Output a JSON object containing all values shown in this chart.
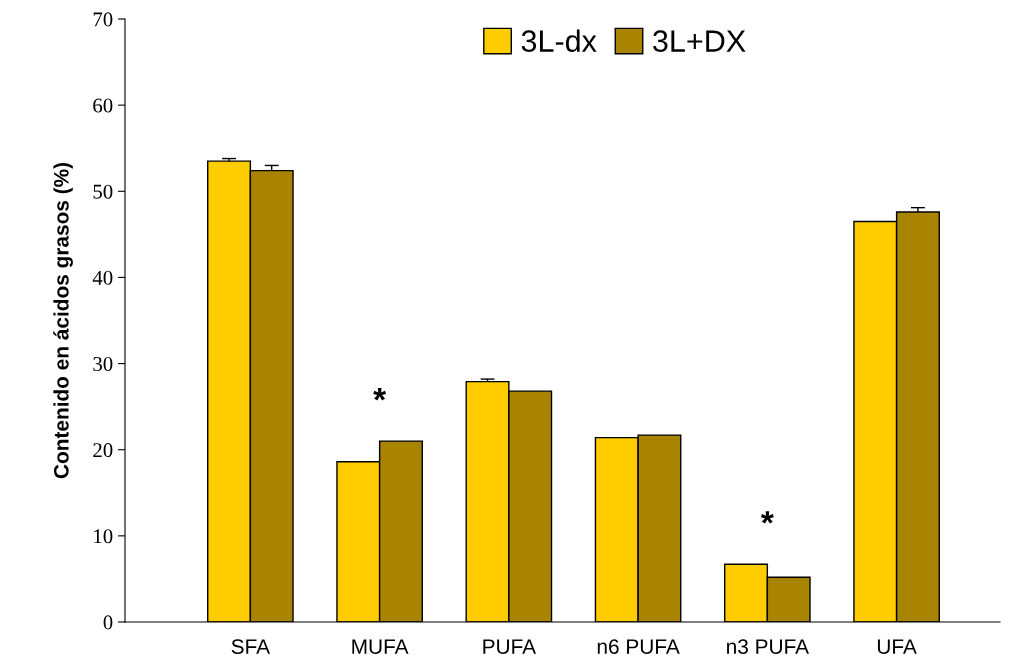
{
  "chart_data": {
    "type": "bar",
    "ylabel": "Contenido en ácidos grasos (%)",
    "categories": [
      "SFA",
      "MUFA",
      "PUFA",
      "n6 PUFA",
      "n3 PUFA",
      "UFA"
    ],
    "series": [
      {
        "name": "3L-dx",
        "color": "#ffcc00",
        "values": [
          53.5,
          18.6,
          27.9,
          21.4,
          6.7,
          46.5
        ],
        "errors": [
          0.3,
          null,
          0.3,
          null,
          null,
          null
        ]
      },
      {
        "name": "3L+DX",
        "color": "#a88400",
        "values": [
          52.4,
          21.0,
          26.8,
          21.7,
          5.2,
          47.6
        ],
        "errors": [
          0.6,
          null,
          null,
          null,
          null,
          0.5
        ]
      }
    ],
    "ylim": [
      0,
      70
    ],
    "yticks": [
      0,
      10,
      20,
      30,
      40,
      50,
      60,
      70
    ],
    "grid": false,
    "legend": "top",
    "annotations": [
      "*",
      "*"
    ]
  }
}
